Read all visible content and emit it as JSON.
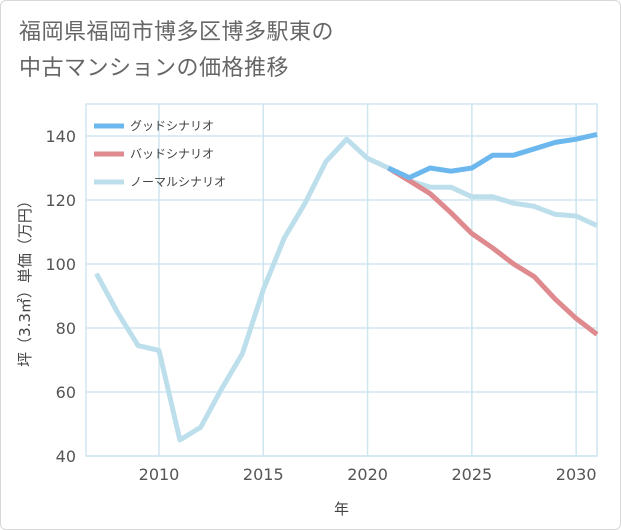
{
  "title_lines": [
    "福岡県福岡市博多区博多駅東の",
    "中古マンションの価格推移"
  ],
  "chart_data": {
    "type": "line",
    "xlabel": "年",
    "ylabel": "坪（3.3㎡）単価（万円）",
    "xlim": [
      2006.5,
      2031
    ],
    "ylim": [
      40,
      150
    ],
    "xticks": [
      2010,
      2015,
      2020,
      2025,
      2030
    ],
    "yticks": [
      40,
      60,
      80,
      100,
      120,
      140
    ],
    "grid": true,
    "legend_position": "top-left",
    "series": [
      {
        "name": "グッドシナリオ",
        "color": "#6cb8ee",
        "x": [
          2021,
          2022,
          2023,
          2024,
          2025,
          2026,
          2027,
          2028,
          2029,
          2030,
          2031
        ],
        "y": [
          130,
          127,
          130,
          129,
          130,
          134,
          134,
          136,
          138,
          139,
          140.5
        ]
      },
      {
        "name": "バッドシナリオ",
        "color": "#df8a8f",
        "x": [
          2021,
          2022,
          2023,
          2024,
          2025,
          2026,
          2027,
          2028,
          2029,
          2030,
          2031
        ],
        "y": [
          130,
          126,
          122,
          116,
          109.5,
          105,
          100,
          96,
          89,
          83,
          78
        ]
      },
      {
        "name": "ノーマルシナリオ",
        "color": "#bddfec",
        "x": [
          2007,
          2008,
          2009,
          2010,
          2011,
          2012,
          2013,
          2014,
          2015,
          2016,
          2017,
          2018,
          2019,
          2020,
          2021,
          2022,
          2023,
          2024,
          2025,
          2026,
          2027,
          2028,
          2029,
          2030,
          2031
        ],
        "y": [
          97,
          85,
          74.5,
          73,
          45,
          49,
          61,
          72,
          92,
          108,
          119,
          132,
          139,
          133,
          130,
          126,
          124,
          124,
          121,
          121,
          119,
          118,
          115.5,
          115,
          112
        ]
      }
    ]
  }
}
